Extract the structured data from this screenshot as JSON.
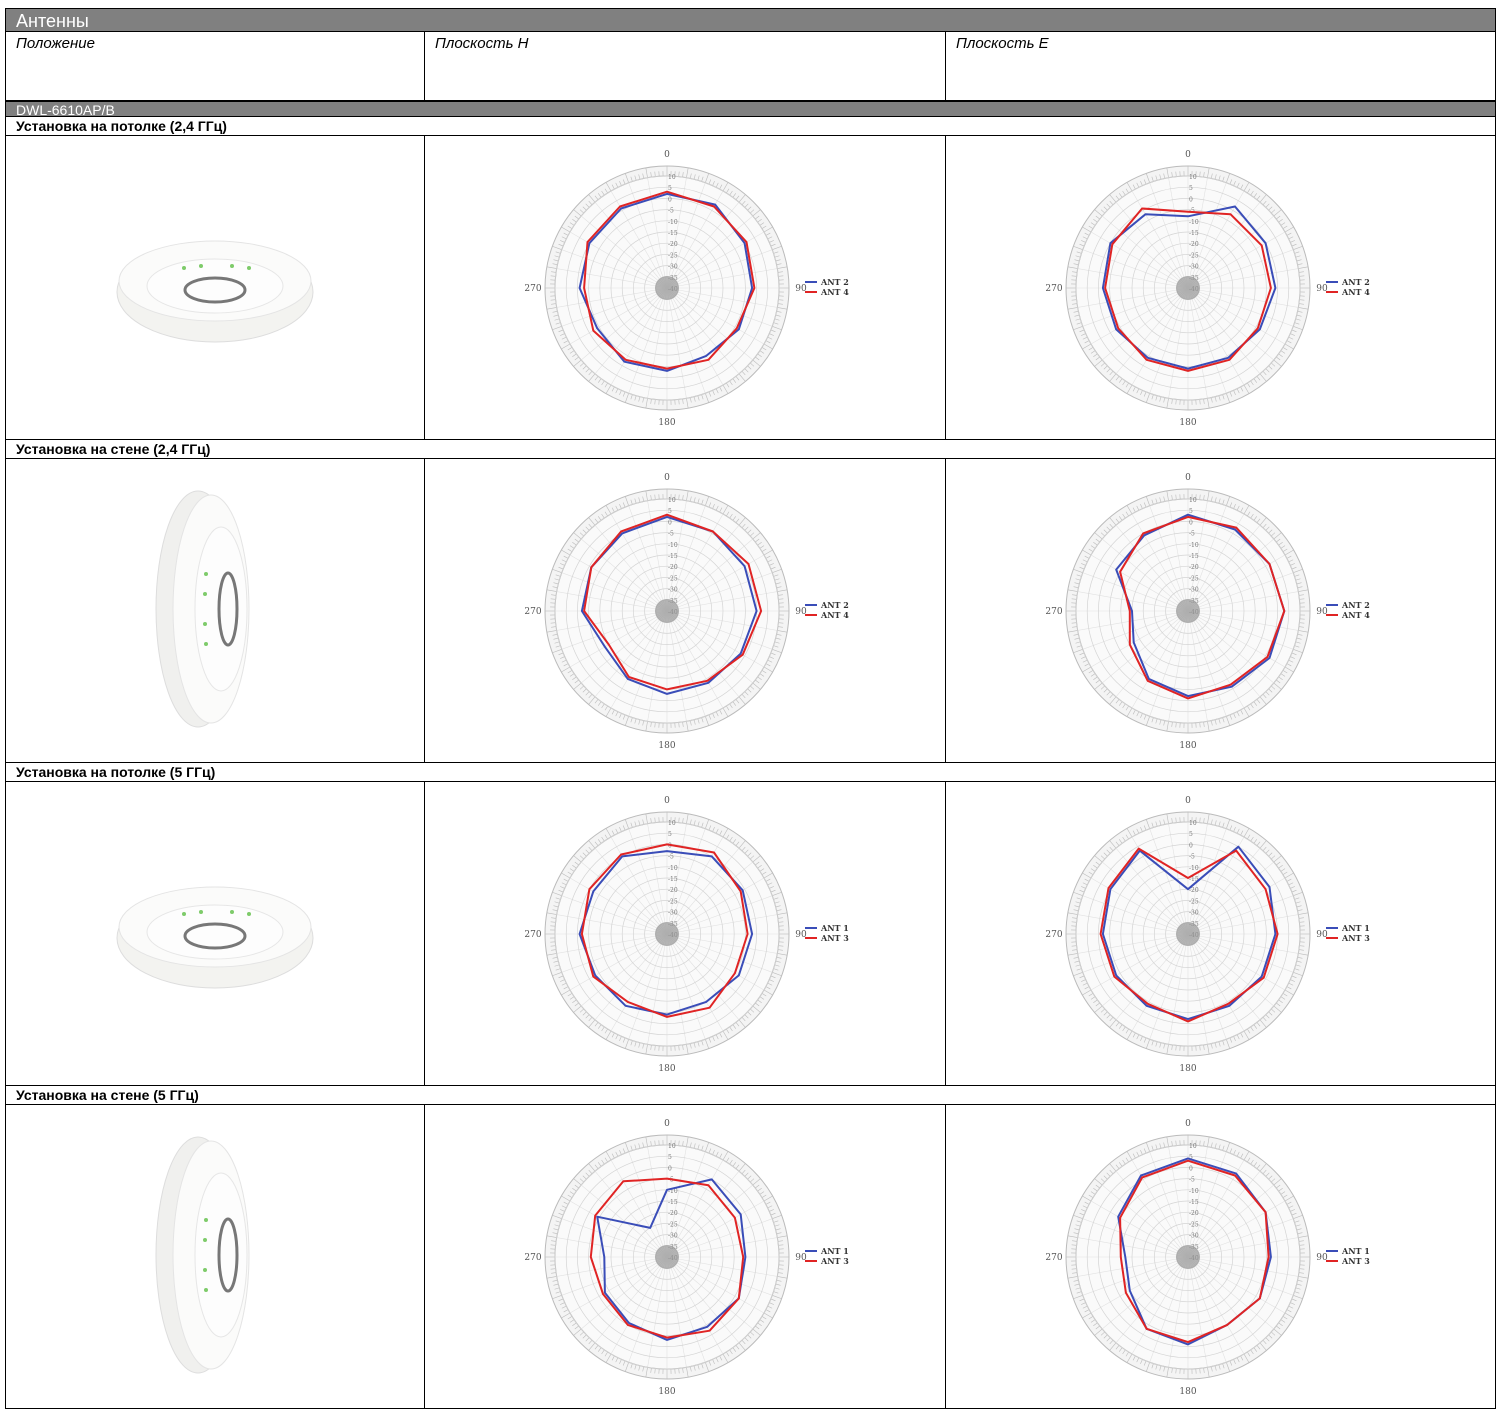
{
  "header": {
    "title": "Антенны"
  },
  "columns": [
    "Положение",
    "Плоскость H",
    "Плоскость E"
  ],
  "model": "DWL-6610AP/B",
  "sections": [
    {
      "title": "Установка на потолке (2,4 ГГц)",
      "h_plane": {
        "type": "polar",
        "theta": [
          0,
          30,
          60,
          90,
          120,
          150,
          180,
          210,
          240,
          270,
          300,
          330
        ],
        "rlim": [
          -40,
          10
        ],
        "rticks": [
          10,
          5,
          0,
          -5,
          -10,
          -15,
          -20,
          -25,
          -30,
          -35,
          -40
        ],
        "angle_ticks": [
          0,
          90,
          180,
          270
        ],
        "series": [
          {
            "name": "ANT 2",
            "color": "#3a4db8",
            "values": [
              2,
              3,
              0,
              -2,
              -3,
              -5,
              -3,
              -2,
              -4,
              -1,
              0,
              1
            ]
          },
          {
            "name": "ANT 4",
            "color": "#e02424",
            "values": [
              3,
              2,
              1,
              -1,
              -4,
              -3,
              -4,
              -3,
              -2,
              -3,
              1,
              2
            ]
          }
        ]
      },
      "e_plane": {
        "type": "polar",
        "theta": [
          0,
          30,
          60,
          90,
          120,
          150,
          180,
          210,
          240,
          270,
          300,
          330
        ],
        "rlim": [
          -40,
          10
        ],
        "rticks": [
          10,
          5,
          0,
          -5,
          -10,
          -15,
          -20,
          -25,
          -30,
          -35,
          -40
        ],
        "angle_ticks": [
          0,
          90,
          180,
          270
        ],
        "series": [
          {
            "name": "ANT 2",
            "color": "#3a4db8",
            "values": [
              -8,
              2,
              0,
              -1,
              -3,
              -4,
              -4,
              -4,
              -3,
              -2,
              0,
              -2
            ]
          },
          {
            "name": "ANT 4",
            "color": "#e02424",
            "values": [
              -6,
              -2,
              -2,
              -3,
              -4,
              -3,
              -3,
              -3,
              -4,
              -3,
              -1,
              1
            ]
          }
        ]
      }
    },
    {
      "title": "Установка на стене (2,4 ГГц)",
      "h_plane": {
        "type": "polar",
        "theta": [
          0,
          30,
          60,
          90,
          120,
          150,
          180,
          210,
          240,
          270,
          300,
          330
        ],
        "rlim": [
          -40,
          10
        ],
        "rticks": [
          10,
          5,
          0,
          -5,
          -10,
          -15,
          -20,
          -25,
          -30,
          -35,
          -40
        ],
        "angle_ticks": [
          0,
          90,
          180,
          270
        ],
        "series": [
          {
            "name": "ANT 2",
            "color": "#3a4db8",
            "values": [
              2,
              1,
              0,
              0,
              -2,
              -3,
              -3,
              -5,
              -8,
              -2,
              -1,
              0
            ]
          },
          {
            "name": "ANT 4",
            "color": "#e02424",
            "values": [
              3,
              1,
              2,
              2,
              -1,
              -4,
              -5,
              -6,
              -10,
              -3,
              -1,
              1
            ]
          }
        ]
      },
      "e_plane": {
        "type": "polar",
        "theta": [
          0,
          30,
          60,
          90,
          120,
          150,
          180,
          210,
          240,
          270,
          300,
          330
        ],
        "rlim": [
          -40,
          10
        ],
        "rticks": [
          10,
          5,
          0,
          -5,
          -10,
          -15,
          -20,
          -25,
          -30,
          -35,
          -40
        ],
        "angle_ticks": [
          0,
          90,
          180,
          270
        ],
        "series": [
          {
            "name": "ANT 2",
            "color": "#3a4db8",
            "values": [
              3,
              2,
              2,
              3,
              2,
              -1,
              -2,
              -5,
              -12,
              -15,
              -3,
              -1
            ]
          },
          {
            "name": "ANT 4",
            "color": "#e02424",
            "values": [
              2,
              3,
              2,
              3,
              1,
              -2,
              -1,
              -4,
              -10,
              -14,
              -5,
              0
            ]
          }
        ]
      }
    },
    {
      "title": "Установка на потолке (5 ГГц)",
      "h_plane": {
        "type": "polar",
        "theta": [
          0,
          30,
          60,
          90,
          120,
          150,
          180,
          210,
          240,
          270,
          300,
          330
        ],
        "rlim": [
          -40,
          10
        ],
        "rticks": [
          10,
          5,
          0,
          -5,
          -10,
          -15,
          -20,
          -25,
          -30,
          -35,
          -40
        ],
        "angle_ticks": [
          0,
          90,
          180,
          270
        ],
        "series": [
          {
            "name": "ANT 1",
            "color": "#3a4db8",
            "values": [
              -3,
              0,
              -1,
              -2,
              -3,
              -5,
              -4,
              -3,
              -3,
              -1,
              -2,
              0
            ]
          },
          {
            "name": "ANT 3",
            "color": "#e02424",
            "values": [
              0,
              2,
              -2,
              -4,
              -5,
              -2,
              -3,
              -5,
              -2,
              -2,
              0,
              1
            ]
          }
        ]
      },
      "e_plane": {
        "type": "polar",
        "theta": [
          0,
          30,
          60,
          90,
          120,
          150,
          180,
          210,
          240,
          270,
          300,
          330
        ],
        "rlim": [
          -40,
          10
        ],
        "rticks": [
          10,
          5,
          0,
          -5,
          -10,
          -15,
          -20,
          -25,
          -30,
          -35,
          -40
        ],
        "angle_ticks": [
          0,
          90,
          180,
          270
        ],
        "series": [
          {
            "name": "ANT 1",
            "color": "#3a4db8",
            "values": [
              -20,
              5,
              2,
              -1,
              -2,
              -3,
              -2,
              -3,
              -3,
              -2,
              0,
              3
            ]
          },
          {
            "name": "ANT 3",
            "color": "#e02424",
            "values": [
              -15,
              3,
              0,
              0,
              -1,
              -4,
              -1,
              -4,
              -2,
              -1,
              1,
              4
            ]
          }
        ]
      }
    },
    {
      "title": "Установка на стене (5 ГГц)",
      "h_plane": {
        "type": "polar",
        "theta": [
          0,
          30,
          60,
          90,
          120,
          150,
          180,
          210,
          240,
          270,
          300,
          330
        ],
        "rlim": [
          -40,
          10
        ],
        "rticks": [
          10,
          5,
          0,
          -5,
          -10,
          -15,
          -20,
          -25,
          -30,
          -35,
          -40
        ],
        "angle_ticks": [
          0,
          90,
          180,
          270
        ],
        "series": [
          {
            "name": "ANT 1",
            "color": "#3a4db8",
            "values": [
              -10,
              0,
              -2,
              -5,
              -3,
              -4,
              -3,
              -6,
              -8,
              -12,
              -4,
              -25
            ]
          },
          {
            "name": "ANT 3",
            "color": "#e02424",
            "values": [
              -5,
              -3,
              -5,
              -6,
              -3,
              -2,
              -4,
              -5,
              -7,
              -6,
              -3,
              -1
            ]
          }
        ]
      },
      "e_plane": {
        "type": "polar",
        "theta": [
          0,
          30,
          60,
          90,
          120,
          150,
          180,
          210,
          240,
          270,
          300,
          330
        ],
        "rlim": [
          -40,
          10
        ],
        "rticks": [
          10,
          5,
          0,
          -5,
          -10,
          -15,
          -20,
          -25,
          -30,
          -35,
          -40
        ],
        "angle_ticks": [
          0,
          90,
          180,
          270
        ],
        "series": [
          {
            "name": "ANT 1",
            "color": "#3a4db8",
            "values": [
              4,
              3,
              0,
              -3,
              -3,
              -5,
              -1,
              -3,
              -10,
              -12,
              -4,
              2
            ]
          },
          {
            "name": "ANT 3",
            "color": "#e02424",
            "values": [
              3,
              2,
              0,
              -4,
              -3,
              -5,
              -2,
              -3,
              -8,
              -10,
              -5,
              1
            ]
          }
        ]
      }
    }
  ]
}
